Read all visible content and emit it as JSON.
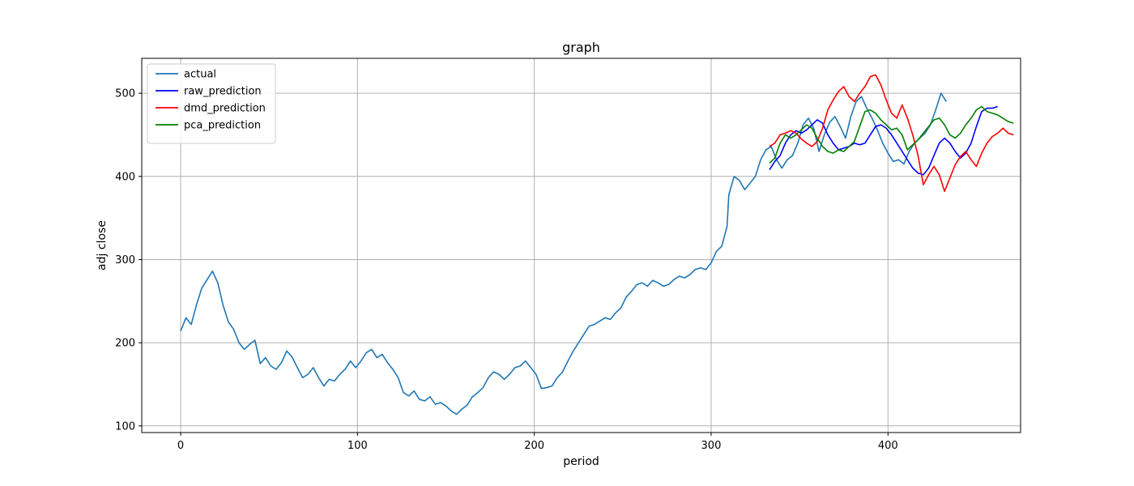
{
  "chart_data": {
    "type": "line",
    "title": "graph",
    "xlabel": "period",
    "ylabel": "adj close",
    "xlim": [
      -22,
      475
    ],
    "ylim": [
      92,
      542
    ],
    "xticks": [
      0,
      100,
      200,
      300,
      400
    ],
    "yticks": [
      100,
      200,
      300,
      400,
      500
    ],
    "grid": true,
    "legend_position": "top-left",
    "series": [
      {
        "name": "actual",
        "color": "#1f77b4",
        "points": [
          [
            0,
            214
          ],
          [
            3,
            230
          ],
          [
            6,
            222
          ],
          [
            9,
            246
          ],
          [
            12,
            266
          ],
          [
            15,
            276
          ],
          [
            18,
            286
          ],
          [
            21,
            272
          ],
          [
            24,
            245
          ],
          [
            27,
            225
          ],
          [
            30,
            216
          ],
          [
            33,
            200
          ],
          [
            36,
            192
          ],
          [
            39,
            198
          ],
          [
            42,
            203
          ],
          [
            45,
            175
          ],
          [
            48,
            182
          ],
          [
            51,
            172
          ],
          [
            54,
            168
          ],
          [
            57,
            176
          ],
          [
            60,
            190
          ],
          [
            63,
            183
          ],
          [
            66,
            170
          ],
          [
            69,
            158
          ],
          [
            72,
            162
          ],
          [
            75,
            170
          ],
          [
            78,
            158
          ],
          [
            81,
            148
          ],
          [
            84,
            156
          ],
          [
            87,
            154
          ],
          [
            90,
            162
          ],
          [
            93,
            168
          ],
          [
            96,
            178
          ],
          [
            99,
            170
          ],
          [
            102,
            178
          ],
          [
            105,
            188
          ],
          [
            108,
            192
          ],
          [
            111,
            182
          ],
          [
            114,
            186
          ],
          [
            117,
            176
          ],
          [
            120,
            168
          ],
          [
            123,
            158
          ],
          [
            126,
            140
          ],
          [
            129,
            136
          ],
          [
            132,
            142
          ],
          [
            135,
            132
          ],
          [
            138,
            130
          ],
          [
            141,
            135
          ],
          [
            144,
            126
          ],
          [
            147,
            128
          ],
          [
            150,
            124
          ],
          [
            153,
            118
          ],
          [
            156,
            114
          ],
          [
            159,
            120
          ],
          [
            162,
            125
          ],
          [
            165,
            135
          ],
          [
            168,
            140
          ],
          [
            171,
            146
          ],
          [
            174,
            158
          ],
          [
            177,
            165
          ],
          [
            180,
            162
          ],
          [
            183,
            156
          ],
          [
            186,
            162
          ],
          [
            189,
            170
          ],
          [
            192,
            172
          ],
          [
            195,
            178
          ],
          [
            198,
            170
          ],
          [
            201,
            162
          ],
          [
            204,
            145
          ],
          [
            207,
            146
          ],
          [
            210,
            148
          ],
          [
            213,
            158
          ],
          [
            216,
            165
          ],
          [
            219,
            178
          ],
          [
            222,
            190
          ],
          [
            225,
            200
          ],
          [
            228,
            210
          ],
          [
            231,
            220
          ],
          [
            234,
            222
          ],
          [
            237,
            226
          ],
          [
            240,
            230
          ],
          [
            243,
            228
          ],
          [
            246,
            236
          ],
          [
            249,
            242
          ],
          [
            252,
            255
          ],
          [
            255,
            262
          ],
          [
            258,
            270
          ],
          [
            261,
            272
          ],
          [
            264,
            268
          ],
          [
            267,
            275
          ],
          [
            270,
            272
          ],
          [
            273,
            268
          ],
          [
            276,
            270
          ],
          [
            279,
            276
          ],
          [
            282,
            280
          ],
          [
            285,
            278
          ],
          [
            288,
            282
          ],
          [
            291,
            288
          ],
          [
            294,
            290
          ],
          [
            297,
            288
          ],
          [
            300,
            296
          ],
          [
            303,
            310
          ],
          [
            306,
            316
          ],
          [
            309,
            340
          ],
          [
            310,
            378
          ],
          [
            313,
            400
          ],
          [
            316,
            395
          ],
          [
            319,
            384
          ],
          [
            322,
            392
          ],
          [
            325,
            400
          ],
          [
            328,
            420
          ],
          [
            331,
            432
          ],
          [
            334,
            436
          ],
          [
            337,
            420
          ],
          [
            340,
            410
          ],
          [
            343,
            420
          ],
          [
            346,
            425
          ],
          [
            349,
            440
          ],
          [
            352,
            462
          ],
          [
            355,
            470
          ],
          [
            358,
            458
          ],
          [
            361,
            430
          ],
          [
            364,
            450
          ],
          [
            367,
            465
          ],
          [
            370,
            472
          ],
          [
            373,
            460
          ],
          [
            376,
            446
          ],
          [
            379,
            472
          ],
          [
            382,
            490
          ],
          [
            385,
            496
          ],
          [
            388,
            482
          ],
          [
            391,
            470
          ],
          [
            394,
            456
          ],
          [
            397,
            440
          ],
          [
            400,
            428
          ],
          [
            403,
            418
          ],
          [
            406,
            420
          ],
          [
            409,
            415
          ],
          [
            412,
            430
          ],
          [
            415,
            440
          ],
          [
            418,
            446
          ],
          [
            421,
            452
          ],
          [
            424,
            462
          ],
          [
            427,
            480
          ],
          [
            430,
            500
          ],
          [
            433,
            490
          ]
        ]
      },
      {
        "name": "raw_prediction",
        "color": "#0000ff",
        "points": [
          [
            333,
            408
          ],
          [
            336,
            418
          ],
          [
            339,
            425
          ],
          [
            342,
            440
          ],
          [
            345,
            450
          ],
          [
            348,
            455
          ],
          [
            351,
            452
          ],
          [
            354,
            456
          ],
          [
            357,
            462
          ],
          [
            360,
            468
          ],
          [
            363,
            464
          ],
          [
            366,
            450
          ],
          [
            369,
            440
          ],
          [
            372,
            432
          ],
          [
            375,
            434
          ],
          [
            378,
            436
          ],
          [
            381,
            440
          ],
          [
            384,
            438
          ],
          [
            387,
            440
          ],
          [
            390,
            450
          ],
          [
            393,
            460
          ],
          [
            396,
            462
          ],
          [
            399,
            458
          ],
          [
            402,
            450
          ],
          [
            405,
            440
          ],
          [
            408,
            430
          ],
          [
            411,
            420
          ],
          [
            414,
            410
          ],
          [
            417,
            404
          ],
          [
            420,
            402
          ],
          [
            423,
            410
          ],
          [
            426,
            425
          ],
          [
            429,
            440
          ],
          [
            432,
            446
          ],
          [
            435,
            440
          ],
          [
            438,
            430
          ],
          [
            441,
            422
          ],
          [
            444,
            428
          ],
          [
            447,
            440
          ],
          [
            450,
            460
          ],
          [
            453,
            478
          ],
          [
            456,
            482
          ],
          [
            459,
            482
          ],
          [
            462,
            484
          ]
        ]
      },
      {
        "name": "dmd_prediction",
        "color": "#ff0000",
        "points": [
          [
            333,
            436
          ],
          [
            336,
            440
          ],
          [
            339,
            450
          ],
          [
            342,
            452
          ],
          [
            345,
            455
          ],
          [
            348,
            452
          ],
          [
            351,
            445
          ],
          [
            354,
            440
          ],
          [
            357,
            436
          ],
          [
            360,
            442
          ],
          [
            363,
            458
          ],
          [
            366,
            480
          ],
          [
            369,
            492
          ],
          [
            372,
            502
          ],
          [
            375,
            508
          ],
          [
            378,
            496
          ],
          [
            381,
            490
          ],
          [
            384,
            500
          ],
          [
            387,
            508
          ],
          [
            390,
            520
          ],
          [
            393,
            522
          ],
          [
            396,
            510
          ],
          [
            399,
            492
          ],
          [
            402,
            476
          ],
          [
            405,
            470
          ],
          [
            408,
            486
          ],
          [
            411,
            470
          ],
          [
            414,
            450
          ],
          [
            417,
            425
          ],
          [
            420,
            390
          ],
          [
            423,
            402
          ],
          [
            426,
            412
          ],
          [
            429,
            402
          ],
          [
            432,
            382
          ],
          [
            435,
            398
          ],
          [
            438,
            414
          ],
          [
            441,
            424
          ],
          [
            444,
            430
          ],
          [
            447,
            420
          ],
          [
            450,
            412
          ],
          [
            453,
            428
          ],
          [
            456,
            440
          ],
          [
            459,
            448
          ],
          [
            462,
            452
          ],
          [
            465,
            458
          ],
          [
            468,
            452
          ],
          [
            471,
            450
          ]
        ]
      },
      {
        "name": "pca_prediction",
        "color": "#008000",
        "points": [
          [
            333,
            416
          ],
          [
            336,
            422
          ],
          [
            339,
            440
          ],
          [
            342,
            450
          ],
          [
            345,
            446
          ],
          [
            348,
            450
          ],
          [
            351,
            456
          ],
          [
            354,
            462
          ],
          [
            357,
            458
          ],
          [
            360,
            446
          ],
          [
            363,
            436
          ],
          [
            366,
            430
          ],
          [
            369,
            428
          ],
          [
            372,
            432
          ],
          [
            375,
            430
          ],
          [
            378,
            436
          ],
          [
            381,
            442
          ],
          [
            384,
            460
          ],
          [
            387,
            478
          ],
          [
            390,
            480
          ],
          [
            393,
            476
          ],
          [
            396,
            468
          ],
          [
            399,
            462
          ],
          [
            402,
            456
          ],
          [
            405,
            458
          ],
          [
            408,
            450
          ],
          [
            411,
            432
          ],
          [
            414,
            438
          ],
          [
            417,
            444
          ],
          [
            420,
            452
          ],
          [
            423,
            460
          ],
          [
            426,
            468
          ],
          [
            429,
            470
          ],
          [
            432,
            462
          ],
          [
            435,
            450
          ],
          [
            438,
            446
          ],
          [
            441,
            452
          ],
          [
            444,
            462
          ],
          [
            447,
            470
          ],
          [
            450,
            480
          ],
          [
            453,
            484
          ],
          [
            456,
            478
          ],
          [
            459,
            476
          ],
          [
            462,
            474
          ],
          [
            465,
            470
          ],
          [
            468,
            466
          ],
          [
            471,
            464
          ]
        ]
      }
    ]
  }
}
